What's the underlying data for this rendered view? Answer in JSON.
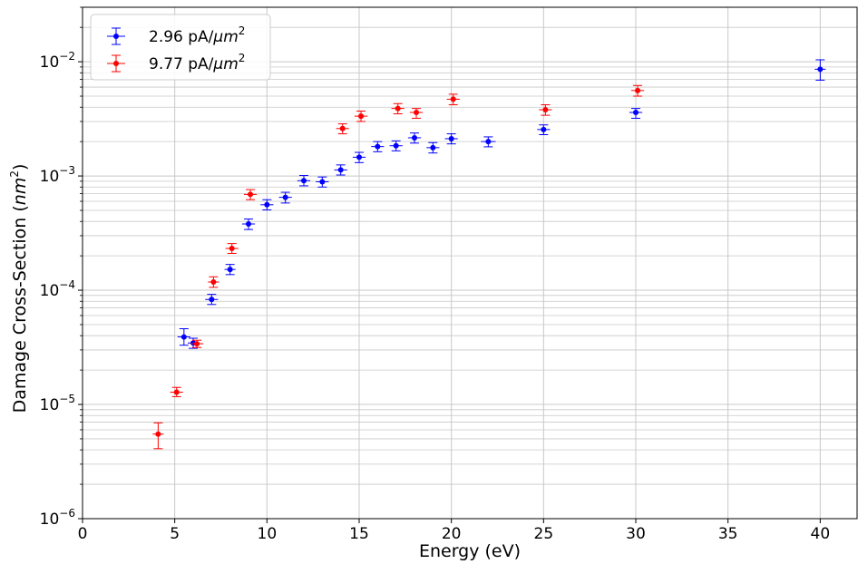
{
  "chart_data": {
    "type": "scatter",
    "title": "",
    "xlabel": "Energy (eV)",
    "ylabel": "Damage Cross-Section (nm²)",
    "xlim": [
      0,
      42
    ],
    "ylim": [
      1e-06,
      0.03
    ],
    "yscale": "log",
    "grid": true,
    "legend_position": "top-left",
    "x_ticks": [
      0,
      5,
      10,
      15,
      20,
      25,
      30,
      35,
      40
    ],
    "y_ticks": [
      {
        "value": 1e-06,
        "base": "10",
        "exp": "−6"
      },
      {
        "value": 1e-05,
        "base": "10",
        "exp": "−5"
      },
      {
        "value": 0.0001,
        "base": "10",
        "exp": "−4"
      },
      {
        "value": 0.001,
        "base": "10",
        "exp": "−3"
      },
      {
        "value": 0.01,
        "base": "10",
        "exp": "−2"
      }
    ],
    "series": [
      {
        "name": "2.96 pA/μm²",
        "label_main": "2.96 pA/",
        "label_unit": "μm",
        "label_sup": "2",
        "color": "#0000ff",
        "points": [
          {
            "x": 5.5,
            "y": 3.9e-05,
            "xerr": 0.35,
            "ylow": 3.3e-05,
            "yhigh": 4.6e-05
          },
          {
            "x": 6.0,
            "y": 3.45e-05,
            "xerr": 0.3,
            "ylow": 3.1e-05,
            "yhigh": 3.8e-05
          },
          {
            "x": 7.0,
            "y": 8.3e-05,
            "xerr": 0.35,
            "ylow": 7.5e-05,
            "yhigh": 9.2e-05
          },
          {
            "x": 8.0,
            "y": 0.000152,
            "xerr": 0.3,
            "ylow": 0.000137,
            "yhigh": 0.000168
          },
          {
            "x": 9.0,
            "y": 0.00038,
            "xerr": 0.35,
            "ylow": 0.00034,
            "yhigh": 0.00042
          },
          {
            "x": 10.0,
            "y": 0.00056,
            "xerr": 0.35,
            "ylow": 0.000505,
            "yhigh": 0.00062
          },
          {
            "x": 11.0,
            "y": 0.00065,
            "xerr": 0.35,
            "ylow": 0.00058,
            "yhigh": 0.00072
          },
          {
            "x": 12.0,
            "y": 0.00091,
            "xerr": 0.35,
            "ylow": 0.00082,
            "yhigh": 0.00101
          },
          {
            "x": 13.0,
            "y": 0.00089,
            "xerr": 0.35,
            "ylow": 0.0008,
            "yhigh": 0.00098
          },
          {
            "x": 14.0,
            "y": 0.00113,
            "xerr": 0.35,
            "ylow": 0.00102,
            "yhigh": 0.00125
          },
          {
            "x": 15.0,
            "y": 0.00146,
            "xerr": 0.35,
            "ylow": 0.00131,
            "yhigh": 0.00161
          },
          {
            "x": 16.0,
            "y": 0.00181,
            "xerr": 0.35,
            "ylow": 0.00163,
            "yhigh": 0.002
          },
          {
            "x": 17.0,
            "y": 0.00184,
            "xerr": 0.35,
            "ylow": 0.00166,
            "yhigh": 0.00203
          },
          {
            "x": 18.0,
            "y": 0.00216,
            "xerr": 0.35,
            "ylow": 0.00194,
            "yhigh": 0.00238
          },
          {
            "x": 19.0,
            "y": 0.00177,
            "xerr": 0.35,
            "ylow": 0.00159,
            "yhigh": 0.00196
          },
          {
            "x": 20.0,
            "y": 0.00212,
            "xerr": 0.35,
            "ylow": 0.00191,
            "yhigh": 0.00234
          },
          {
            "x": 22.0,
            "y": 0.002,
            "xerr": 0.4,
            "ylow": 0.0018,
            "yhigh": 0.0022
          },
          {
            "x": 25.0,
            "y": 0.00255,
            "xerr": 0.35,
            "ylow": 0.0023,
            "yhigh": 0.0028
          },
          {
            "x": 30.0,
            "y": 0.0036,
            "xerr": 0.35,
            "ylow": 0.0032,
            "yhigh": 0.0039
          },
          {
            "x": 40.0,
            "y": 0.0086,
            "xerr": 0.3,
            "ylow": 0.0069,
            "yhigh": 0.0104
          }
        ]
      },
      {
        "name": "9.77 pA/μm²",
        "label_main": "9.77 pA/",
        "label_unit": "μm",
        "label_sup": "2",
        "color": "#ff0000",
        "points": [
          {
            "x": 4.1,
            "y": 5.5e-06,
            "xerr": 0.3,
            "ylow": 4.1e-06,
            "yhigh": 6.9e-06
          },
          {
            "x": 5.1,
            "y": 1.28e-05,
            "xerr": 0.35,
            "ylow": 1.17e-05,
            "yhigh": 1.41e-05
          },
          {
            "x": 6.2,
            "y": 3.4e-05,
            "xerr": 0.35,
            "ylow": 3.15e-05,
            "yhigh": 3.65e-05
          },
          {
            "x": 7.1,
            "y": 0.000118,
            "xerr": 0.3,
            "ylow": 0.000106,
            "yhigh": 0.000131
          },
          {
            "x": 8.1,
            "y": 0.000232,
            "xerr": 0.35,
            "ylow": 0.00021,
            "yhigh": 0.000256
          },
          {
            "x": 9.1,
            "y": 0.00069,
            "xerr": 0.35,
            "ylow": 0.00062,
            "yhigh": 0.00076
          },
          {
            "x": 14.1,
            "y": 0.0026,
            "xerr": 0.35,
            "ylow": 0.00234,
            "yhigh": 0.00286
          },
          {
            "x": 15.1,
            "y": 0.00334,
            "xerr": 0.35,
            "ylow": 0.003,
            "yhigh": 0.0037
          },
          {
            "x": 17.1,
            "y": 0.0039,
            "xerr": 0.35,
            "ylow": 0.0035,
            "yhigh": 0.0043
          },
          {
            "x": 18.1,
            "y": 0.0036,
            "xerr": 0.35,
            "ylow": 0.0032,
            "yhigh": 0.0039
          },
          {
            "x": 20.1,
            "y": 0.0047,
            "xerr": 0.35,
            "ylow": 0.0042,
            "yhigh": 0.0052
          },
          {
            "x": 25.1,
            "y": 0.0038,
            "xerr": 0.35,
            "ylow": 0.0034,
            "yhigh": 0.0042
          },
          {
            "x": 30.1,
            "y": 0.0056,
            "xerr": 0.35,
            "ylow": 0.005,
            "yhigh": 0.0062
          }
        ]
      }
    ]
  }
}
